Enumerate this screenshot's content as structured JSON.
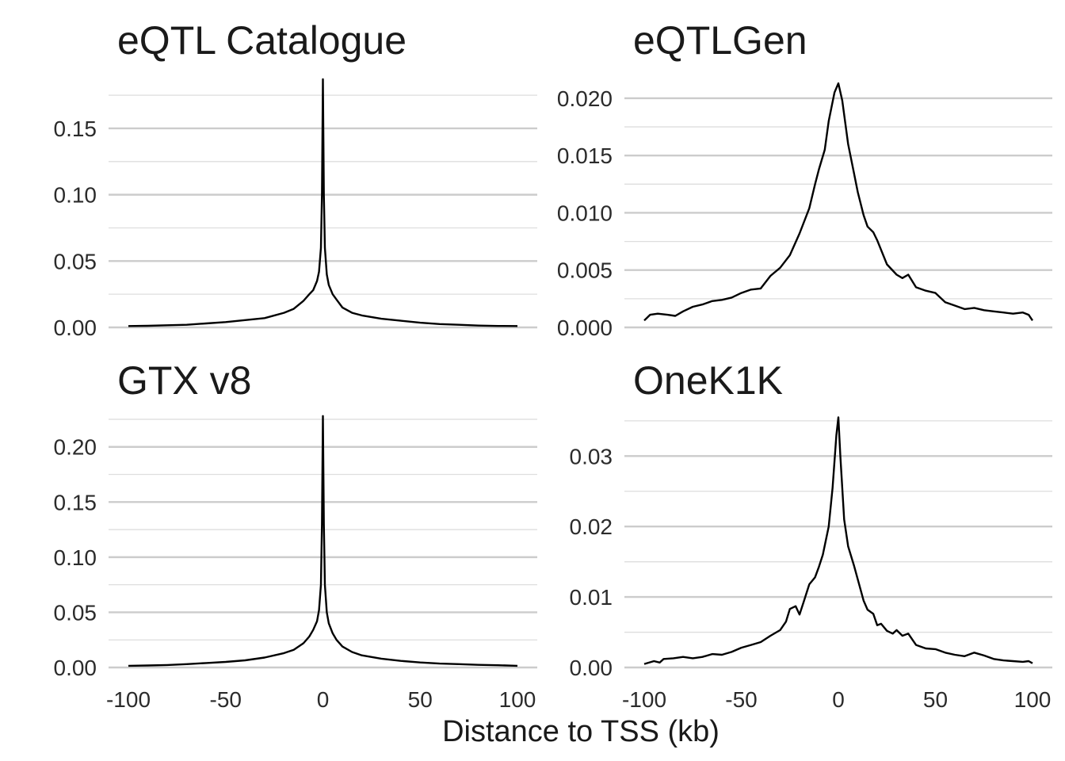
{
  "figure": {
    "xlabel": "Distance to TSS (kb)"
  },
  "chart_data": [
    {
      "type": "line",
      "title": "eQTL Catalogue",
      "xlabel": "Distance to TSS (kb)",
      "ylabel": "",
      "xlim": [
        -100,
        100
      ],
      "ylim": [
        0,
        0.19
      ],
      "x_ticks": [
        -100,
        -50,
        0,
        50,
        100
      ],
      "y_ticks": [
        0.0,
        0.05,
        0.1,
        0.15
      ],
      "y_tick_labels": [
        "0.00",
        "0.05",
        "0.10",
        "0.15"
      ],
      "grid": true,
      "x": [
        -100,
        -90,
        -80,
        -70,
        -60,
        -50,
        -40,
        -30,
        -20,
        -15,
        -10,
        -7,
        -5,
        -3,
        -2,
        -1,
        -0.5,
        0,
        0.5,
        1,
        2,
        3,
        5,
        7,
        10,
        15,
        20,
        30,
        40,
        50,
        60,
        70,
        80,
        90,
        100
      ],
      "series": [
        {
          "values": [
            0.001,
            0.0012,
            0.0016,
            0.002,
            0.003,
            0.004,
            0.0055,
            0.007,
            0.011,
            0.014,
            0.02,
            0.025,
            0.028,
            0.035,
            0.042,
            0.06,
            0.1,
            0.187,
            0.1,
            0.06,
            0.04,
            0.032,
            0.025,
            0.021,
            0.015,
            0.011,
            0.009,
            0.0065,
            0.005,
            0.0035,
            0.0025,
            0.002,
            0.0014,
            0.0011,
            0.001
          ]
        }
      ]
    },
    {
      "type": "line",
      "title": "eQTLGen",
      "xlabel": "Distance to TSS (kb)",
      "ylabel": "",
      "xlim": [
        -100,
        100
      ],
      "ylim": [
        0,
        0.022
      ],
      "x_ticks": [
        -100,
        -50,
        0,
        50,
        100
      ],
      "y_ticks": [
        0.0,
        0.005,
        0.01,
        0.015,
        0.02
      ],
      "y_tick_labels": [
        "0.000",
        "0.005",
        "0.010",
        "0.015",
        "0.020"
      ],
      "grid": true,
      "x": [
        -100,
        -97,
        -93,
        -88,
        -84,
        -80,
        -75,
        -70,
        -65,
        -60,
        -55,
        -50,
        -45,
        -40,
        -35,
        -30,
        -25,
        -20,
        -15,
        -12,
        -10,
        -7,
        -5,
        -2,
        0,
        2,
        5,
        8,
        10,
        13,
        15,
        18,
        20,
        25,
        30,
        33,
        36,
        40,
        45,
        50,
        55,
        60,
        65,
        70,
        75,
        80,
        85,
        90,
        95,
        98,
        100
      ],
      "series": [
        {
          "values": [
            0.0006,
            0.0011,
            0.0012,
            0.0011,
            0.001,
            0.0014,
            0.0018,
            0.002,
            0.0023,
            0.0024,
            0.0026,
            0.003,
            0.0033,
            0.0034,
            0.0045,
            0.0052,
            0.0063,
            0.0082,
            0.0104,
            0.0125,
            0.0138,
            0.0155,
            0.018,
            0.0205,
            0.0213,
            0.0198,
            0.016,
            0.0135,
            0.0118,
            0.0098,
            0.0088,
            0.0083,
            0.0076,
            0.0055,
            0.0046,
            0.0043,
            0.0046,
            0.0035,
            0.0032,
            0.003,
            0.0022,
            0.0019,
            0.0016,
            0.0017,
            0.0015,
            0.0014,
            0.0013,
            0.0012,
            0.0013,
            0.0011,
            0.0006
          ]
        }
      ]
    },
    {
      "type": "line",
      "title": "GTX v8",
      "xlabel": "Distance to TSS (kb)",
      "ylabel": "",
      "xlim": [
        -100,
        100
      ],
      "ylim": [
        0,
        0.23
      ],
      "x_ticks": [
        -100,
        -50,
        0,
        50,
        100
      ],
      "y_ticks": [
        0.0,
        0.05,
        0.1,
        0.15,
        0.2
      ],
      "y_tick_labels": [
        "0.00",
        "0.05",
        "0.10",
        "0.15",
        "0.20"
      ],
      "grid": true,
      "x": [
        -100,
        -90,
        -80,
        -70,
        -60,
        -50,
        -40,
        -30,
        -20,
        -15,
        -10,
        -7,
        -5,
        -3,
        -2,
        -1,
        -0.5,
        0,
        0.5,
        1,
        2,
        3,
        5,
        7,
        10,
        15,
        20,
        30,
        40,
        50,
        60,
        70,
        80,
        90,
        100
      ],
      "series": [
        {
          "values": [
            0.0015,
            0.0018,
            0.0022,
            0.003,
            0.004,
            0.005,
            0.0065,
            0.009,
            0.013,
            0.016,
            0.022,
            0.028,
            0.034,
            0.042,
            0.052,
            0.075,
            0.13,
            0.228,
            0.13,
            0.075,
            0.05,
            0.04,
            0.031,
            0.025,
            0.019,
            0.014,
            0.011,
            0.008,
            0.006,
            0.0045,
            0.0035,
            0.003,
            0.0024,
            0.002,
            0.0015
          ]
        }
      ]
    },
    {
      "type": "line",
      "title": "OneK1K",
      "xlabel": "Distance to TSS (kb)",
      "ylabel": "",
      "xlim": [
        -100,
        100
      ],
      "ylim": [
        0,
        0.036
      ],
      "x_ticks": [
        -100,
        -50,
        0,
        50,
        100
      ],
      "y_ticks": [
        0.0,
        0.01,
        0.02,
        0.03
      ],
      "y_tick_labels": [
        "0.00",
        "0.01",
        "0.02",
        "0.03"
      ],
      "grid": true,
      "x": [
        -100,
        -95,
        -92,
        -90,
        -85,
        -80,
        -75,
        -70,
        -65,
        -60,
        -55,
        -50,
        -45,
        -40,
        -35,
        -30,
        -27,
        -25,
        -22,
        -20,
        -18,
        -15,
        -12,
        -10,
        -8,
        -5,
        -3,
        -1,
        0,
        1,
        3,
        5,
        8,
        10,
        13,
        15,
        18,
        20,
        22,
        25,
        28,
        30,
        33,
        36,
        40,
        45,
        50,
        55,
        60,
        65,
        70,
        75,
        80,
        85,
        90,
        95,
        98,
        100
      ],
      "series": [
        {
          "values": [
            0.0005,
            0.0009,
            0.0007,
            0.0012,
            0.0013,
            0.0015,
            0.0013,
            0.0015,
            0.0019,
            0.0018,
            0.0022,
            0.0028,
            0.0032,
            0.0036,
            0.0045,
            0.0053,
            0.0065,
            0.0083,
            0.0087,
            0.0075,
            0.0092,
            0.0118,
            0.0128,
            0.0143,
            0.016,
            0.02,
            0.0255,
            0.033,
            0.0355,
            0.03,
            0.021,
            0.0172,
            0.0145,
            0.0125,
            0.0095,
            0.0082,
            0.0076,
            0.006,
            0.0062,
            0.0052,
            0.0048,
            0.0053,
            0.0045,
            0.0048,
            0.0032,
            0.0027,
            0.0026,
            0.0021,
            0.0018,
            0.0016,
            0.0021,
            0.0017,
            0.0012,
            0.001,
            0.0009,
            0.0008,
            0.0009,
            0.0006
          ]
        }
      ]
    }
  ]
}
